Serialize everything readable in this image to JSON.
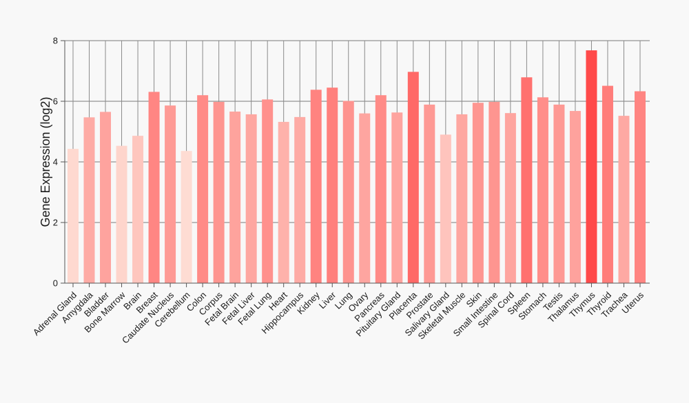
{
  "chart_data": {
    "type": "bar",
    "title": "",
    "xlabel": "",
    "ylabel": "Gene Expression (log2)",
    "ylim": [
      0,
      8
    ],
    "yticks": [
      0,
      2,
      4,
      6,
      8
    ],
    "grid": true,
    "color_scale": {
      "low": "#fedcd3",
      "high": "#ff4a4a",
      "min_value": 4.36,
      "max_value": 7.68
    },
    "categories": [
      "Adrenal Gland",
      "Amygdala",
      "Bladder",
      "Bone Marrow",
      "Brain",
      "Breast",
      "Caudate Nucleus",
      "Cerebellum",
      "Colon",
      "Corpus",
      "Fetal Brain",
      "Fetal Liver",
      "Fetal Lung",
      "Heart",
      "Hippocampus",
      "Kidney",
      "Liver",
      "Lung",
      "Ovary",
      "Pancreas",
      "Pituitary Gland",
      "Placenta",
      "Prostate",
      "Salivary Gland",
      "Skeletal Muscle",
      "Skin",
      "Small Intestine",
      "Spinal Cord",
      "Spleen",
      "Stomach",
      "Testis",
      "Thalamus",
      "Thymus",
      "Thyroid",
      "Trachea",
      "Uterus"
    ],
    "values": [
      4.43,
      5.47,
      5.65,
      4.53,
      4.86,
      6.31,
      5.86,
      4.36,
      6.2,
      5.98,
      5.66,
      5.57,
      6.06,
      5.32,
      5.48,
      6.38,
      6.45,
      6.01,
      5.6,
      6.2,
      5.63,
      6.97,
      5.89,
      4.9,
      5.57,
      5.95,
      5.98,
      5.61,
      6.79,
      6.13,
      5.89,
      5.68,
      7.68,
      6.51,
      5.52,
      6.33
    ]
  }
}
